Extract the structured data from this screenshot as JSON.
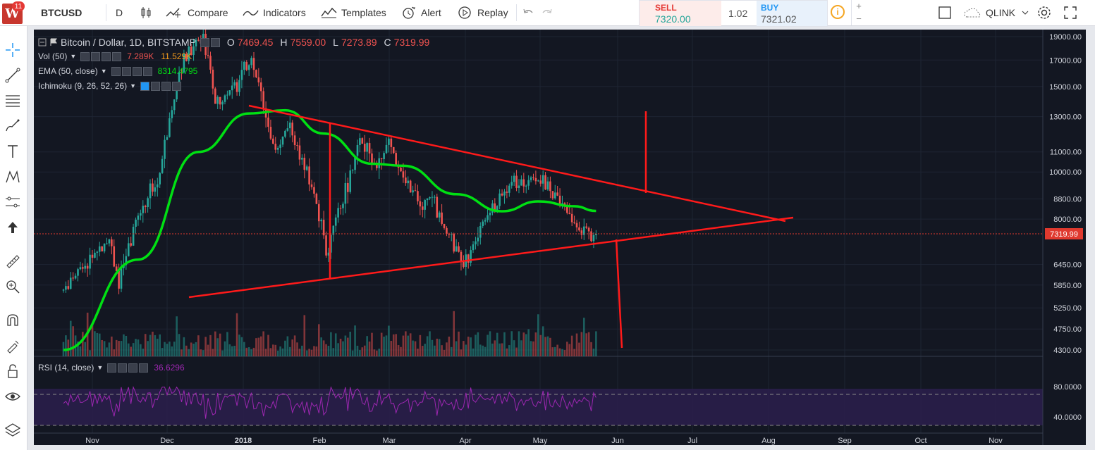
{
  "toolbar": {
    "logo_letter": "W",
    "notification_count": "11",
    "symbol": "BTCUSD",
    "interval": "D",
    "compare": "Compare",
    "indicators": "Indicators",
    "templates": "Templates",
    "alert": "Alert",
    "replay": "Replay",
    "sell_label": "SELL",
    "sell_price": "7320.00",
    "spread": "1.02",
    "buy_label": "BUY",
    "buy_price": "7321.02",
    "layout_name": "QLINK",
    "plus": "+",
    "minus": "−",
    "info": "i"
  },
  "legend": {
    "title": "Bitcoin / Dollar, 1D, BITSTAMP",
    "o_label": "O",
    "o_value": "7469.45",
    "h_label": "H",
    "h_value": "7559.00",
    "l_label": "L",
    "l_value": "7273.89",
    "c_label": "C",
    "c_value": "7319.99",
    "vol_name": "Vol (50)",
    "vol_v1": "7.289K",
    "vol_v2": "11.529K",
    "ema_name": "EMA (50, close)",
    "ema_value": "8314.4795",
    "ichimoku_name": "Ichimoku (9, 26, 52, 26)",
    "rsi_name": "RSI (14, close)",
    "rsi_value": "36.6296"
  },
  "colors": {
    "background": "#131722",
    "up": "#26a69a",
    "down": "#ef5350",
    "ema": "#00e013",
    "drawings": "#ff1a1a",
    "rsi": "#9c27b0",
    "price_label": "#e0392e"
  },
  "icons": [
    "crosshair-icon",
    "trend-line-icon",
    "fib-icon",
    "brush-icon",
    "text-icon",
    "pattern-icon",
    "forecast-icon",
    "arrow-icon",
    "ruler-icon",
    "zoom-icon",
    "magnet-icon",
    "lock-drawing-icon",
    "lock-icon",
    "eye-icon",
    "layers-icon"
  ],
  "chart_data": {
    "type": "candlestick",
    "title": "Bitcoin / Dollar, 1D, BITSTAMP",
    "last_price": "7319.99",
    "y_ticks": [
      "19000.00",
      "17000.00",
      "15000.00",
      "13000.00",
      "11000.00",
      "10000.00",
      "8800.00",
      "8000.00",
      "7319.99",
      "6450.00",
      "5850.00",
      "5250.00",
      "4750.00",
      "4300.00"
    ],
    "x_ticks": [
      "Nov",
      "Dec",
      "2018",
      "Feb",
      "Mar",
      "Apr",
      "May",
      "Jun",
      "Jul",
      "Aug",
      "Sep",
      "Oct",
      "Nov"
    ],
    "rsi_ticks": [
      "80.0000",
      "40.0000"
    ],
    "ylim": [
      4100,
      19500
    ],
    "price_path_approx": [
      [
        "Oct 20",
        5700
      ],
      [
        "Nov 1",
        6700
      ],
      [
        "Nov 8",
        7300
      ],
      [
        "Nov 12",
        5900
      ],
      [
        "Nov 20",
        8200
      ],
      [
        "Nov 29",
        9900
      ],
      [
        "Dec 7",
        16500
      ],
      [
        "Dec 17",
        19300
      ],
      [
        "Dec 22",
        13800
      ],
      [
        "Dec 28",
        14500
      ],
      [
        "Jan 6",
        17100
      ],
      [
        "Jan 16",
        11100
      ],
      [
        "Jan 22",
        12200
      ],
      [
        "Feb 1",
        9000
      ],
      [
        "Feb 6",
        6900
      ],
      [
        "Feb 20",
        11400
      ],
      [
        "Feb 28",
        10400
      ],
      [
        "Mar 4",
        11500
      ],
      [
        "Mar 18",
        8200
      ],
      [
        "Mar 21",
        9000
      ],
      [
        "Apr 1",
        6800
      ],
      [
        "Apr 6",
        6600
      ],
      [
        "Apr 12",
        7900
      ],
      [
        "Apr 24",
        9500
      ],
      [
        "May 5",
        9800
      ],
      [
        "May 15",
        8500
      ],
      [
        "May 23",
        7500
      ],
      [
        "May 29",
        7320
      ]
    ],
    "ema50_approx": [
      [
        "Oct 20",
        4300
      ],
      [
        "Nov 20",
        6600
      ],
      [
        "Dec 15",
        11000
      ],
      [
        "Jan 5",
        13200
      ],
      [
        "Jan 20",
        13400
      ],
      [
        "Feb 5",
        12000
      ],
      [
        "Feb 25",
        10400
      ],
      [
        "Mar 10",
        10300
      ],
      [
        "Apr 1",
        9000
      ],
      [
        "Apr 20",
        8300
      ],
      [
        "May 5",
        8700
      ],
      [
        "May 20",
        8500
      ],
      [
        "May 29",
        8314
      ]
    ]
  }
}
